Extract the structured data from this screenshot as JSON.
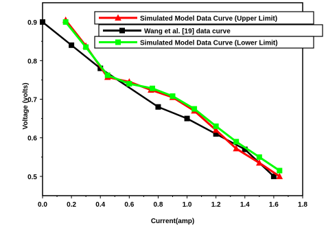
{
  "chart_data": {
    "type": "line",
    "xlabel": "Current(amp)",
    "ylabel": "Voltage (volts)",
    "xlim": [
      0.0,
      1.8
    ],
    "ylim": [
      0.45,
      0.95
    ],
    "xticks": [
      "0.0",
      "0.2",
      "0.4",
      "0.6",
      "0.8",
      "1.0",
      "1.2",
      "1.4",
      "1.6",
      "1.8"
    ],
    "yticks": [
      "0.5",
      "0.6",
      "0.7",
      "0.8",
      "0.9"
    ],
    "grid": false,
    "legend_position": "top-right",
    "series": [
      {
        "name": "Simulated Model Data Curve (Upper Limit)",
        "color": "#ff0000",
        "marker": "triangle",
        "x": [
          0.16,
          0.3,
          0.45,
          0.6,
          0.75,
          0.9,
          1.05,
          1.2,
          1.34,
          1.5,
          1.64
        ],
        "y": [
          0.905,
          0.838,
          0.757,
          0.745,
          0.724,
          0.705,
          0.67,
          0.62,
          0.572,
          0.535,
          0.5
        ]
      },
      {
        "name": "Wang et al. [19] data curve",
        "color": "#000000",
        "marker": "square",
        "x": [
          0.0,
          0.2,
          0.4,
          0.8,
          1.0,
          1.2,
          1.4,
          1.6
        ],
        "y": [
          0.9,
          0.84,
          0.78,
          0.68,
          0.65,
          0.61,
          0.57,
          0.5
        ]
      },
      {
        "name": "Simulated Model Data Curve (Lower Limit)",
        "color": "#00ff00",
        "marker": "square",
        "x": [
          0.16,
          0.3,
          0.45,
          0.6,
          0.76,
          0.9,
          1.05,
          1.2,
          1.34,
          1.5,
          1.64
        ],
        "y": [
          0.9,
          0.835,
          0.762,
          0.74,
          0.728,
          0.708,
          0.675,
          0.63,
          0.59,
          0.55,
          0.515
        ]
      }
    ]
  }
}
